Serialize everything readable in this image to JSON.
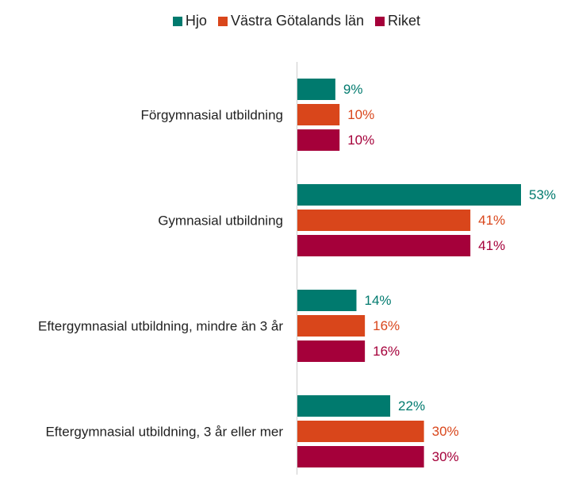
{
  "chart_data": {
    "type": "bar",
    "orientation": "horizontal",
    "categories": [
      "Förgymnasial utbildning",
      "Gymnasial utbildning",
      "Eftergymnasial utbildning, mindre än 3 år",
      "Eftergymnasial utbildning, 3 år eller mer"
    ],
    "series": [
      {
        "name": "Hjo",
        "color": "#007a6e",
        "values": [
          9,
          53,
          14,
          22
        ],
        "value_labels": [
          "9%",
          "53%",
          "14%",
          "22%"
        ]
      },
      {
        "name": "Västra Götalands län",
        "color": "#d9461b",
        "values": [
          10,
          41,
          16,
          30
        ],
        "value_labels": [
          "10%",
          "41%",
          "16%",
          "30%"
        ]
      },
      {
        "name": "Riket",
        "color": "#a5003a",
        "values": [
          10,
          41,
          16,
          30
        ],
        "value_labels": [
          "10%",
          "41%",
          "16%",
          "30%"
        ]
      }
    ],
    "legend": "top"
  }
}
